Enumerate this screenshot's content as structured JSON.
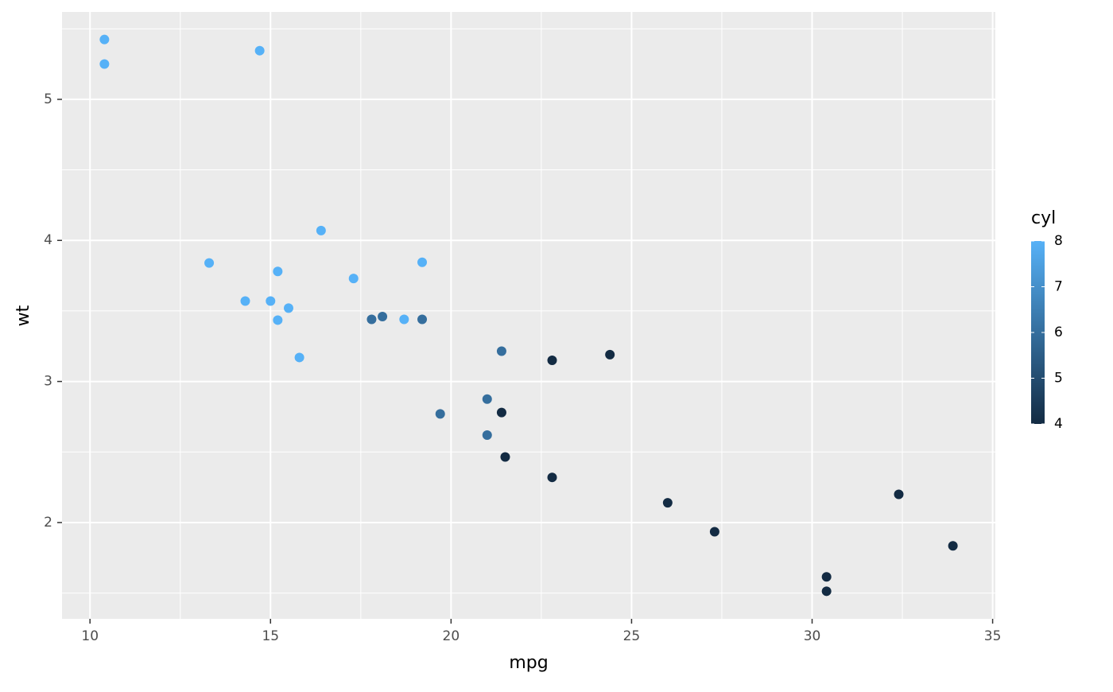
{
  "chart_data": {
    "type": "scatter",
    "x_label": "mpg",
    "y_label": "wt",
    "legend_title": "cyl",
    "x": [
      21.0,
      21.0,
      22.8,
      21.4,
      18.7,
      18.1,
      14.3,
      24.4,
      22.8,
      19.2,
      17.8,
      16.4,
      17.3,
      15.2,
      10.4,
      10.4,
      14.7,
      32.4,
      30.4,
      33.9,
      21.5,
      15.5,
      15.2,
      13.3,
      19.2,
      27.3,
      26.0,
      30.4,
      15.8,
      19.7,
      15.0,
      21.4
    ],
    "y": [
      2.62,
      2.875,
      2.32,
      3.215,
      3.44,
      3.46,
      3.57,
      3.19,
      3.15,
      3.44,
      3.44,
      4.07,
      3.73,
      3.78,
      5.25,
      5.424,
      5.345,
      2.2,
      1.615,
      1.835,
      2.465,
      3.52,
      3.435,
      3.84,
      3.845,
      1.935,
      2.14,
      1.513,
      3.17,
      2.77,
      3.57,
      2.78
    ],
    "color": [
      6,
      6,
      4,
      6,
      8,
      6,
      8,
      4,
      4,
      6,
      6,
      8,
      8,
      8,
      8,
      8,
      8,
      4,
      4,
      4,
      4,
      8,
      8,
      8,
      8,
      4,
      4,
      4,
      8,
      6,
      8,
      4
    ],
    "colorscale": [
      "#132B43",
      "#56B1F7"
    ],
    "colorlim": [
      4,
      8
    ],
    "colorticks": [
      4,
      5,
      6,
      7,
      8
    ],
    "xlim": [
      9.225,
      35.075
    ],
    "xticks": [
      10,
      15,
      20,
      25,
      30,
      35
    ],
    "ylim": [
      1.31745,
      5.61955
    ],
    "yticks": [
      2,
      3,
      4,
      5
    ],
    "grid": true,
    "legend": "right"
  }
}
